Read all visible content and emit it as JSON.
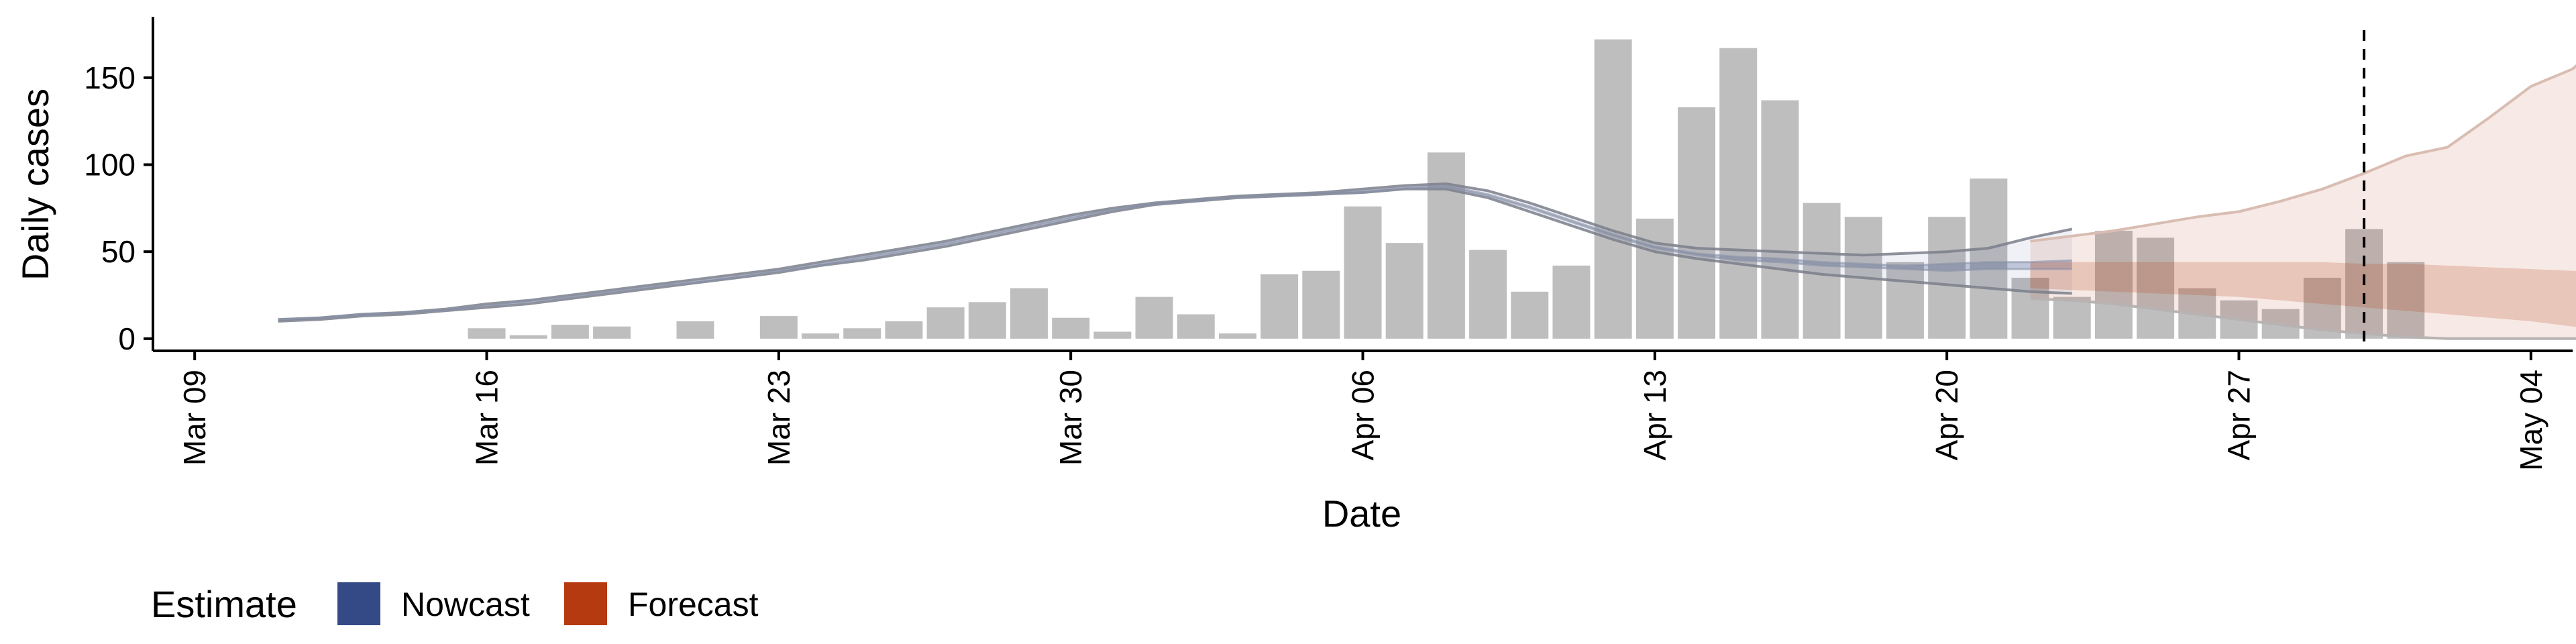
{
  "chart_data": {
    "type": "bar",
    "title": "",
    "xlabel": "Date",
    "ylabel": "Daily cases",
    "ylim": [
      -7,
      185
    ],
    "yticks": [
      0,
      50,
      100,
      150
    ],
    "x_range_days": [
      -1,
      57
    ],
    "x_ticks": [
      {
        "day": 0,
        "label": "Mar 09"
      },
      {
        "day": 7,
        "label": "Mar 16"
      },
      {
        "day": 14,
        "label": "Mar 23"
      },
      {
        "day": 21,
        "label": "Mar 30"
      },
      {
        "day": 28,
        "label": "Apr 06"
      },
      {
        "day": 35,
        "label": "Apr 13"
      },
      {
        "day": 42,
        "label": "Apr 20"
      },
      {
        "day": 49,
        "label": "Apr 27"
      },
      {
        "day": 56,
        "label": "May 04"
      }
    ],
    "forecast_start_day": 52,
    "bars": {
      "start_day": 7,
      "values": [
        6,
        2,
        8,
        7,
        0,
        10,
        0,
        13,
        3,
        6,
        10,
        18,
        21,
        29,
        12,
        4,
        24,
        14,
        3,
        37,
        39,
        76,
        55,
        107,
        51,
        27,
        42,
        172,
        69,
        133,
        167,
        137,
        78,
        70,
        44,
        70,
        92,
        35,
        24,
        62,
        58,
        29,
        22,
        17,
        35,
        63,
        44
      ]
    },
    "nowcast": {
      "start_day": 2,
      "upper": [
        11,
        12,
        14,
        15,
        17,
        20,
        22,
        25,
        28,
        31,
        34,
        37,
        40,
        44,
        48,
        52,
        56,
        61,
        66,
        71,
        75,
        78,
        80,
        82,
        83,
        84,
        86,
        88,
        89,
        85,
        78,
        70,
        62,
        55,
        52,
        51,
        50,
        49,
        48,
        49,
        50,
        52,
        58,
        63
      ],
      "lower": [
        10,
        11,
        13,
        14,
        16,
        18,
        20,
        23,
        26,
        29,
        32,
        35,
        38,
        42,
        45,
        49,
        53,
        58,
        63,
        68,
        73,
        77,
        79,
        81,
        82,
        83,
        84,
        86,
        86,
        81,
        73,
        65,
        57,
        50,
        46,
        43,
        40,
        37,
        35,
        33,
        31,
        29,
        27,
        26
      ],
      "median_upper": [
        11,
        12,
        14,
        15,
        17,
        19,
        22,
        24,
        27,
        30,
        33,
        36,
        39,
        43,
        47,
        51,
        55,
        60,
        65,
        70,
        74,
        78,
        80,
        81,
        83,
        84,
        85,
        87,
        88,
        83,
        76,
        68,
        60,
        53,
        49,
        47,
        46,
        44,
        43,
        42,
        43,
        44,
        44,
        45
      ],
      "median_lower": [
        11,
        12,
        13,
        15,
        16,
        19,
        21,
        24,
        27,
        30,
        32,
        35,
        39,
        42,
        46,
        50,
        54,
        59,
        64,
        69,
        74,
        77,
        79,
        81,
        82,
        83,
        84,
        86,
        87,
        82,
        75,
        67,
        59,
        52,
        48,
        45,
        44,
        42,
        41,
        40,
        39,
        40,
        40,
        40
      ]
    },
    "forecast": {
      "start_day": 44,
      "upper": [
        56,
        59,
        62,
        66,
        70,
        73,
        79,
        86,
        95,
        105,
        110,
        127,
        145,
        155,
        176
      ],
      "lower": [
        23,
        22,
        20,
        17,
        14,
        11,
        8,
        5,
        3,
        1,
        0,
        0,
        0,
        0,
        0
      ],
      "mid_upper": [
        44,
        44,
        44,
        44,
        44,
        44,
        44,
        44,
        43,
        43,
        42,
        41,
        40,
        39,
        38
      ],
      "mid_lower": [
        29,
        28,
        27,
        26,
        25,
        24,
        22,
        20,
        18,
        16,
        14,
        12,
        10,
        7,
        5
      ]
    },
    "legend": {
      "title": "Estimate",
      "position": "bottom-left",
      "entries": [
        {
          "label": "Nowcast",
          "color": "#344A87"
        },
        {
          "label": "Forecast",
          "color": "#B53A0F"
        }
      ]
    },
    "colors": {
      "bar": "#BEBEBE",
      "nowcast": "#344A87",
      "forecast": "#B53A0F",
      "line": "#7B7F8B",
      "axis": "#000000"
    }
  }
}
